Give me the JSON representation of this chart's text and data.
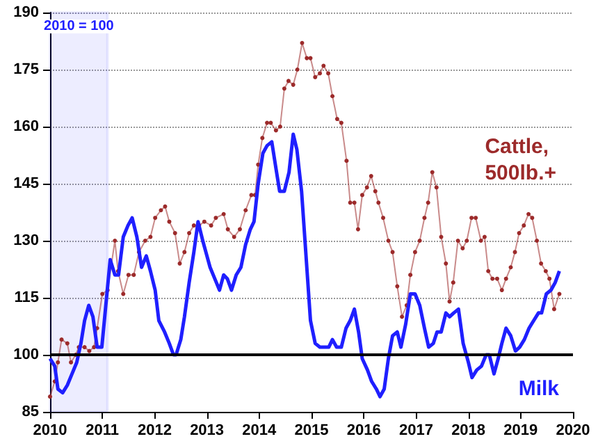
{
  "chart_data": {
    "type": "line",
    "xlim": [
      2010,
      2020
    ],
    "xticks": [
      2010,
      2011,
      2012,
      2013,
      2014,
      2015,
      2016,
      2017,
      2018,
      2019,
      2020
    ],
    "ylim": [
      85,
      190
    ],
    "yticks": [
      85,
      100,
      115,
      130,
      145,
      160,
      175,
      190
    ],
    "grid": "y",
    "legend": false,
    "line_style": "solid",
    "ref_lines": [
      {
        "axis": "y",
        "value": 100,
        "label": null,
        "color": "#000000"
      }
    ],
    "bands": [
      {
        "axis": "x",
        "from": 2010,
        "to": 2011.1,
        "label": "2010 = 100",
        "color": "#1f1fff"
      }
    ],
    "series": [
      {
        "name": "Cattle, 500lb.+",
        "color": "#9c2a2a",
        "marker": "circle",
        "x": [
          2010.0,
          2010.09,
          2010.15,
          2010.22,
          2010.33,
          2010.4,
          2010.49,
          2010.55,
          2010.66,
          2010.75,
          2010.84,
          2010.9,
          2011.0,
          2011.1,
          2011.24,
          2011.3,
          2011.4,
          2011.5,
          2011.6,
          2011.7,
          2011.82,
          2011.92,
          2012.01,
          2012.12,
          2012.2,
          2012.28,
          2012.39,
          2012.48,
          2012.57,
          2012.66,
          2012.75,
          2012.85,
          2012.95,
          2013.08,
          2013.17,
          2013.32,
          2013.4,
          2013.52,
          2013.63,
          2013.74,
          2013.85,
          2013.92,
          2013.98,
          2014.06,
          2014.15,
          2014.22,
          2014.32,
          2014.4,
          2014.48,
          2014.56,
          2014.65,
          2014.73,
          2014.82,
          2014.91,
          2014.98,
          2015.07,
          2015.16,
          2015.23,
          2015.32,
          2015.4,
          2015.49,
          2015.57,
          2015.67,
          2015.74,
          2015.82,
          2015.89,
          2015.97,
          2016.06,
          2016.14,
          2016.22,
          2016.28,
          2016.37,
          2016.47,
          2016.55,
          2016.64,
          2016.73,
          2016.82,
          2016.89,
          2016.98,
          2017.07,
          2017.16,
          2017.23,
          2017.31,
          2017.39,
          2017.48,
          2017.57,
          2017.64,
          2017.71,
          2017.8,
          2017.89,
          2017.97,
          2018.06,
          2018.14,
          2018.24,
          2018.31,
          2018.38,
          2018.46,
          2018.55,
          2018.64,
          2018.72,
          2018.81,
          2018.89,
          2018.97,
          2019.06,
          2019.15,
          2019.22,
          2019.31,
          2019.39,
          2019.48,
          2019.55,
          2019.64,
          2019.74
        ],
        "values": [
          89,
          93,
          98,
          104,
          103,
          98,
          100,
          102,
          102,
          101,
          102,
          107,
          116,
          117,
          130,
          122,
          116,
          121,
          121,
          127,
          130,
          131,
          136,
          138,
          139,
          135,
          132,
          124,
          127,
          132,
          134,
          134,
          135,
          134,
          136,
          137,
          133,
          131,
          133,
          138,
          142,
          142,
          150,
          157,
          161,
          161,
          159,
          160,
          170,
          172,
          171,
          175,
          182,
          178,
          178,
          173,
          174,
          176,
          174,
          168,
          162,
          161,
          151,
          140,
          140,
          133,
          142,
          144,
          147,
          143,
          140,
          136,
          130,
          127,
          118,
          110,
          113,
          121,
          127,
          130,
          136,
          140,
          148,
          144,
          131,
          124,
          114,
          119,
          130,
          128,
          130,
          136,
          136,
          130,
          131,
          122,
          120,
          120,
          117,
          120,
          123,
          127,
          132,
          134,
          137,
          136,
          130,
          124,
          122,
          120,
          112,
          116
        ]
      },
      {
        "name": "Milk",
        "color": "#1f1fff",
        "marker": "none",
        "x": [
          2010.0,
          2010.09,
          2010.15,
          2010.24,
          2010.33,
          2010.42,
          2010.51,
          2010.59,
          2010.66,
          2010.74,
          2010.82,
          2010.9,
          2010.99,
          2011.08,
          2011.15,
          2011.24,
          2011.31,
          2011.4,
          2011.49,
          2011.57,
          2011.66,
          2011.75,
          2011.84,
          2011.92,
          2012.01,
          2012.08,
          2012.19,
          2012.28,
          2012.36,
          2012.41,
          2012.5,
          2012.57,
          2012.66,
          2012.75,
          2012.83,
          2012.92,
          2013.0,
          2013.06,
          2013.15,
          2013.24,
          2013.32,
          2013.39,
          2013.47,
          2013.56,
          2013.65,
          2013.74,
          2013.83,
          2013.9,
          2013.98,
          2014.07,
          2014.15,
          2014.24,
          2014.32,
          2014.39,
          2014.48,
          2014.57,
          2014.65,
          2014.72,
          2014.81,
          2014.89,
          2014.98,
          2015.07,
          2015.16,
          2015.24,
          2015.33,
          2015.4,
          2015.48,
          2015.57,
          2015.66,
          2015.74,
          2015.82,
          2015.9,
          2015.97,
          2016.07,
          2016.15,
          2016.24,
          2016.31,
          2016.39,
          2016.47,
          2016.55,
          2016.64,
          2016.71,
          2016.8,
          2016.89,
          2016.98,
          2017.07,
          2017.16,
          2017.24,
          2017.33,
          2017.4,
          2017.48,
          2017.57,
          2017.64,
          2017.72,
          2017.81,
          2017.9,
          2018.0,
          2018.07,
          2018.16,
          2018.25,
          2018.34,
          2018.4,
          2018.49,
          2018.57,
          2018.64,
          2018.72,
          2018.81,
          2018.9,
          2018.98,
          2019.07,
          2019.16,
          2019.25,
          2019.34,
          2019.4,
          2019.49,
          2019.58,
          2019.66,
          2019.74
        ],
        "values": [
          99,
          97,
          91,
          90,
          92,
          95,
          98,
          103,
          109,
          113,
          110,
          102,
          102,
          115,
          125,
          121,
          121,
          131,
          134,
          136,
          131,
          123,
          126,
          122,
          117,
          109,
          106,
          103,
          100,
          100,
          104,
          110,
          119,
          127,
          135,
          130,
          126,
          123,
          120,
          117,
          121,
          120,
          117,
          121,
          123,
          129,
          133,
          135,
          145,
          153,
          155,
          156,
          149,
          143,
          143,
          148,
          158,
          154,
          143,
          127,
          109,
          103,
          102,
          102,
          102,
          104,
          102,
          102,
          107,
          109,
          112,
          106,
          99,
          96,
          93,
          91,
          89,
          91,
          99,
          105,
          106,
          102,
          108,
          116,
          116,
          113,
          107,
          102,
          103,
          106,
          106,
          111,
          110,
          111,
          112,
          103,
          98,
          94,
          96,
          97,
          100,
          100,
          95,
          99,
          103,
          107,
          105,
          101,
          102,
          104,
          107,
          109,
          111,
          111,
          116,
          117,
          119,
          122
        ]
      }
    ]
  }
}
